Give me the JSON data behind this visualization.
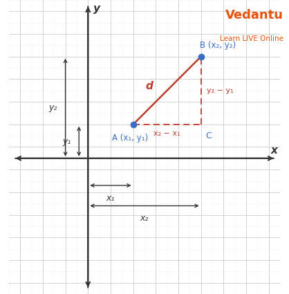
{
  "bg_color": "#ffffff",
  "grid_major_color": "#cccccc",
  "grid_minor_color": "#e8e8e8",
  "axis_color": "#333333",
  "blue_color": "#3a6ec4",
  "red_color": "#c0392b",
  "dashed_color": "#c0392b",
  "point_A": [
    5,
    4
  ],
  "point_B": [
    8,
    7
  ],
  "point_C": [
    8,
    4
  ],
  "origin_x": 3,
  "origin_y": 2.5,
  "xlim": [
    -0.5,
    11.5
  ],
  "ylim": [
    -3.5,
    9.5
  ],
  "figsize": [
    4.18,
    4.25
  ],
  "dpi": 100,
  "label_A": "A (x₁, y₁)",
  "label_B": "B (x₂, y₂)",
  "label_C": "C",
  "label_d": "d",
  "label_x2mx1": "x₂ − x₁",
  "label_y2my1": "y₂ − y₁",
  "label_y1": "y₁",
  "label_y2": "y₂",
  "label_x1": "x₁",
  "label_x2": "x₂",
  "label_x_axis": "x",
  "label_y_axis": "y",
  "vedantu_text": "Vedantu",
  "vedantu_sub": "Learn LIVE Online",
  "vedantu_color": "#e8520a"
}
